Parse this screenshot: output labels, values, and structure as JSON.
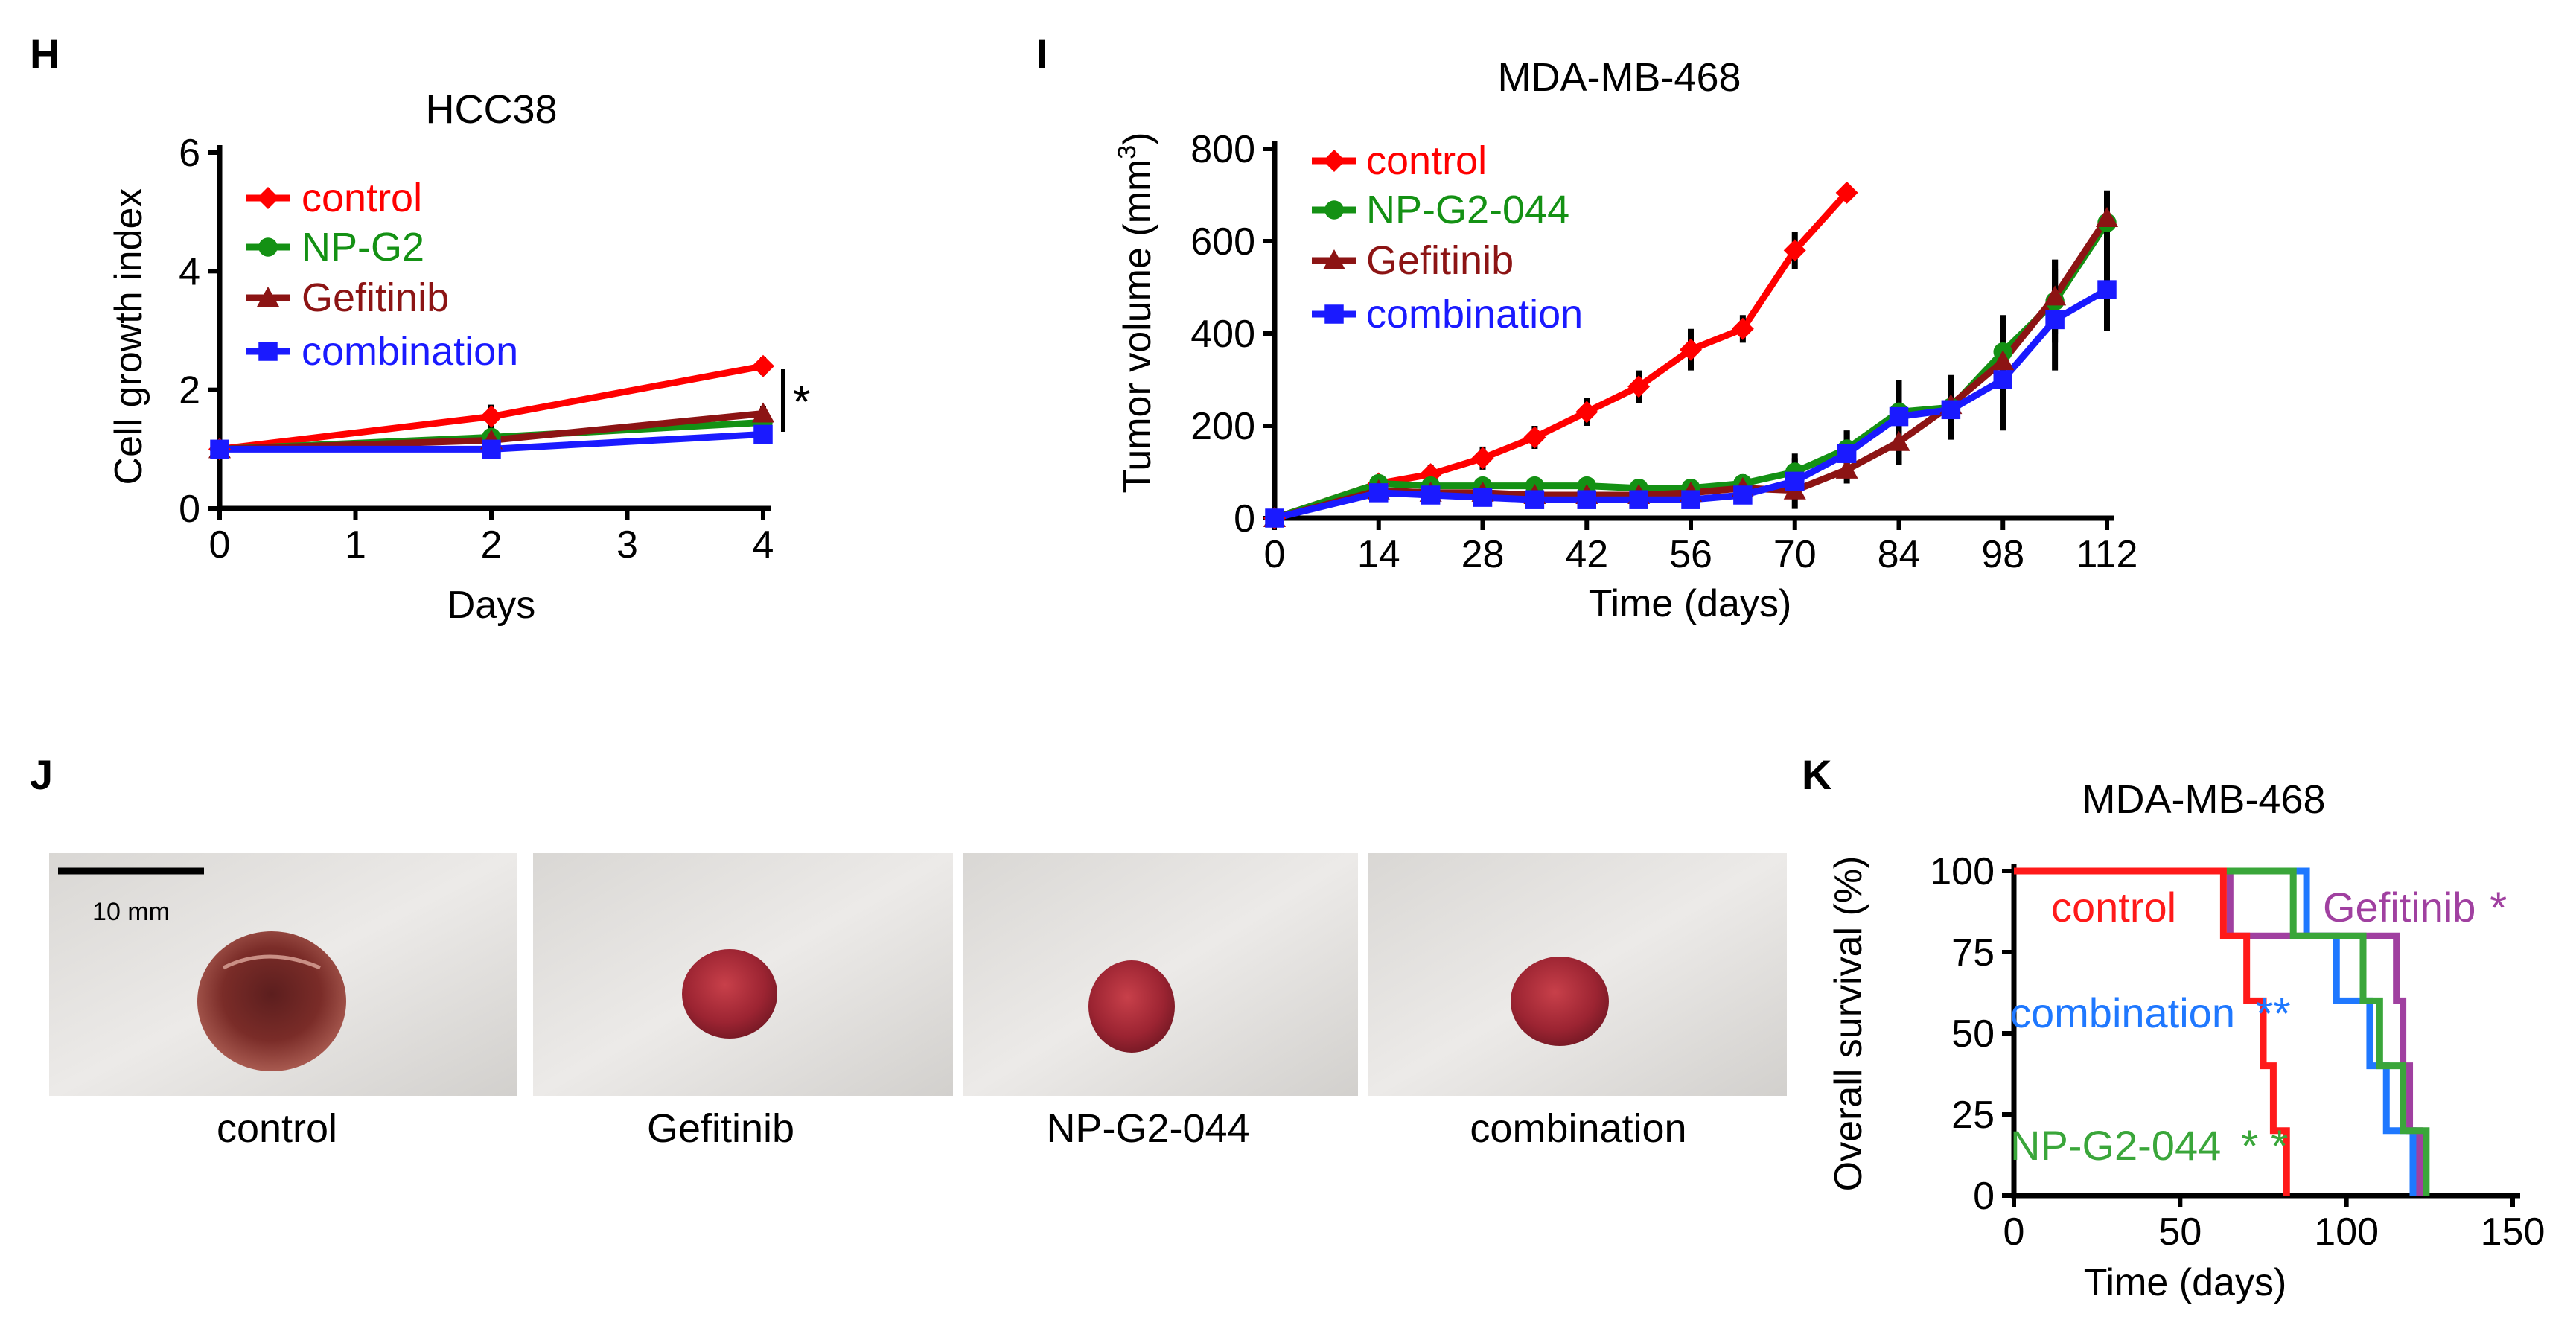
{
  "panels": {
    "h": "H",
    "i": "I",
    "j": "J",
    "k": "K"
  },
  "photos": {
    "scale_label": "10 mm",
    "labels": [
      "control",
      "Gefitinib",
      "NP-G2-044",
      "combination"
    ]
  },
  "colors": {
    "control": "#ff0000",
    "npg2": "#149114",
    "gefitinib": "#8c1414",
    "combination": "#1a1aff",
    "k_control": "#ff1a1a",
    "k_combination": "#1f78ff",
    "k_gefitinib": "#a040a0",
    "k_npg2": "#3aa63a"
  },
  "chart_data": [
    {
      "id": "H",
      "type": "line",
      "title": "HCC38",
      "xlabel": "Days",
      "ylabel": "Cell growth index",
      "x": [
        0,
        2,
        4
      ],
      "xticks": [
        0,
        1,
        2,
        3,
        4
      ],
      "yticks": [
        0,
        2,
        4,
        6
      ],
      "xlim": [
        0,
        4
      ],
      "ylim": [
        0,
        6
      ],
      "series": [
        {
          "name": "control",
          "values": [
            1.0,
            1.55,
            2.4
          ],
          "err": [
            0.05,
            0.2,
            0.15
          ],
          "marker": "diamond"
        },
        {
          "name": "NP-G2",
          "values": [
            1.0,
            1.2,
            1.45
          ],
          "err": [
            0.05,
            0.15,
            0.12
          ],
          "marker": "circle"
        },
        {
          "name": "Gefitinib",
          "values": [
            1.0,
            1.15,
            1.6
          ],
          "err": [
            0.05,
            0.12,
            0.12
          ],
          "marker": "triangle"
        },
        {
          "name": "combination",
          "values": [
            1.0,
            1.0,
            1.25
          ],
          "err": [
            0.05,
            0.1,
            0.1
          ],
          "marker": "square"
        }
      ],
      "annotation": "*"
    },
    {
      "id": "I",
      "type": "line",
      "title": "MDA-MB-468",
      "xlabel": "Time (days)",
      "ylabel_main": "Tumor volume (mm",
      "ylabel_sup": "3",
      "ylabel_end": ")",
      "xticks": [
        0,
        14,
        28,
        42,
        56,
        70,
        84,
        98,
        112
      ],
      "yticks": [
        0,
        200,
        400,
        600,
        800
      ],
      "xlim": [
        0,
        112
      ],
      "ylim": [
        0,
        800
      ],
      "series": [
        {
          "name": "control",
          "x": [
            0,
            14,
            21,
            28,
            35,
            42,
            49,
            56,
            63,
            70,
            77
          ],
          "values": [
            0,
            75,
            95,
            130,
            175,
            230,
            285,
            365,
            410,
            580,
            705
          ],
          "err": [
            0,
            15,
            20,
            25,
            25,
            30,
            35,
            45,
            30,
            40,
            10
          ],
          "marker": "diamond"
        },
        {
          "name": "NP-G2-044",
          "x": [
            0,
            14,
            21,
            28,
            35,
            42,
            49,
            56,
            63,
            70,
            77,
            84,
            91,
            98,
            105,
            112
          ],
          "values": [
            0,
            75,
            70,
            70,
            70,
            70,
            65,
            65,
            75,
            100,
            150,
            230,
            240,
            360,
            470,
            640
          ],
          "err": [
            0,
            15,
            15,
            15,
            15,
            15,
            15,
            15,
            20,
            30,
            40,
            60,
            70,
            80,
            90,
            60
          ],
          "marker": "circle"
        },
        {
          "name": "Gefitinib",
          "x": [
            0,
            14,
            21,
            28,
            35,
            42,
            49,
            56,
            63,
            70,
            77,
            84,
            91,
            98,
            105,
            112
          ],
          "values": [
            0,
            60,
            55,
            55,
            50,
            50,
            50,
            55,
            65,
            60,
            105,
            165,
            245,
            340,
            480,
            650
          ],
          "err": [
            0,
            15,
            15,
            15,
            15,
            15,
            15,
            15,
            20,
            20,
            30,
            50,
            60,
            70,
            80,
            60
          ],
          "marker": "triangle"
        },
        {
          "name": "combination",
          "x": [
            0,
            14,
            21,
            28,
            35,
            42,
            49,
            56,
            63,
            70,
            77,
            84,
            91,
            98,
            105,
            112
          ],
          "values": [
            0,
            55,
            50,
            45,
            40,
            40,
            40,
            40,
            50,
            80,
            140,
            220,
            235,
            300,
            430,
            495
          ],
          "err": [
            0,
            20,
            15,
            15,
            15,
            15,
            15,
            15,
            20,
            60,
            50,
            80,
            60,
            110,
            110,
            90
          ],
          "marker": "square"
        }
      ]
    },
    {
      "id": "K",
      "type": "line",
      "subtype": "step",
      "title": "MDA-MB-468",
      "xlabel": "Time (days)",
      "ylabel": "Overall survival (%)",
      "xticks": [
        0,
        50,
        100,
        150
      ],
      "yticks": [
        0,
        25,
        50,
        75,
        100
      ],
      "xlim": [
        0,
        150
      ],
      "ylim": [
        0,
        100
      ],
      "series": [
        {
          "name": "combination",
          "label": "combination",
          "stars": "**",
          "x": [
            0,
            88,
            88,
            97,
            97,
            107,
            107,
            112,
            112,
            120,
            120
          ],
          "values": [
            100,
            100,
            80,
            80,
            60,
            60,
            40,
            40,
            20,
            20,
            0
          ]
        },
        {
          "name": "Gefitinib",
          "label": "Gefitinib",
          "stars": "*",
          "x": [
            0,
            65,
            65,
            70,
            70,
            92,
            92,
            115,
            115,
            117,
            117,
            119,
            119,
            122,
            122
          ],
          "values": [
            100,
            100,
            80,
            80,
            80,
            80,
            80,
            80,
            60,
            60,
            40,
            40,
            20,
            20,
            0
          ]
        },
        {
          "name": "NP-G2-044",
          "label": "NP-G2-044",
          "stars": "* *",
          "x": [
            0,
            84,
            84,
            105,
            105,
            110,
            110,
            117,
            117,
            124,
            124
          ],
          "values": [
            100,
            100,
            80,
            80,
            60,
            60,
            40,
            40,
            20,
            20,
            0
          ]
        },
        {
          "name": "control",
          "label": "control",
          "stars": "",
          "x": [
            0,
            63,
            63,
            70,
            70,
            75,
            75,
            78,
            78,
            82,
            82
          ],
          "values": [
            100,
            100,
            80,
            80,
            60,
            60,
            40,
            40,
            20,
            20,
            0
          ]
        }
      ]
    }
  ]
}
